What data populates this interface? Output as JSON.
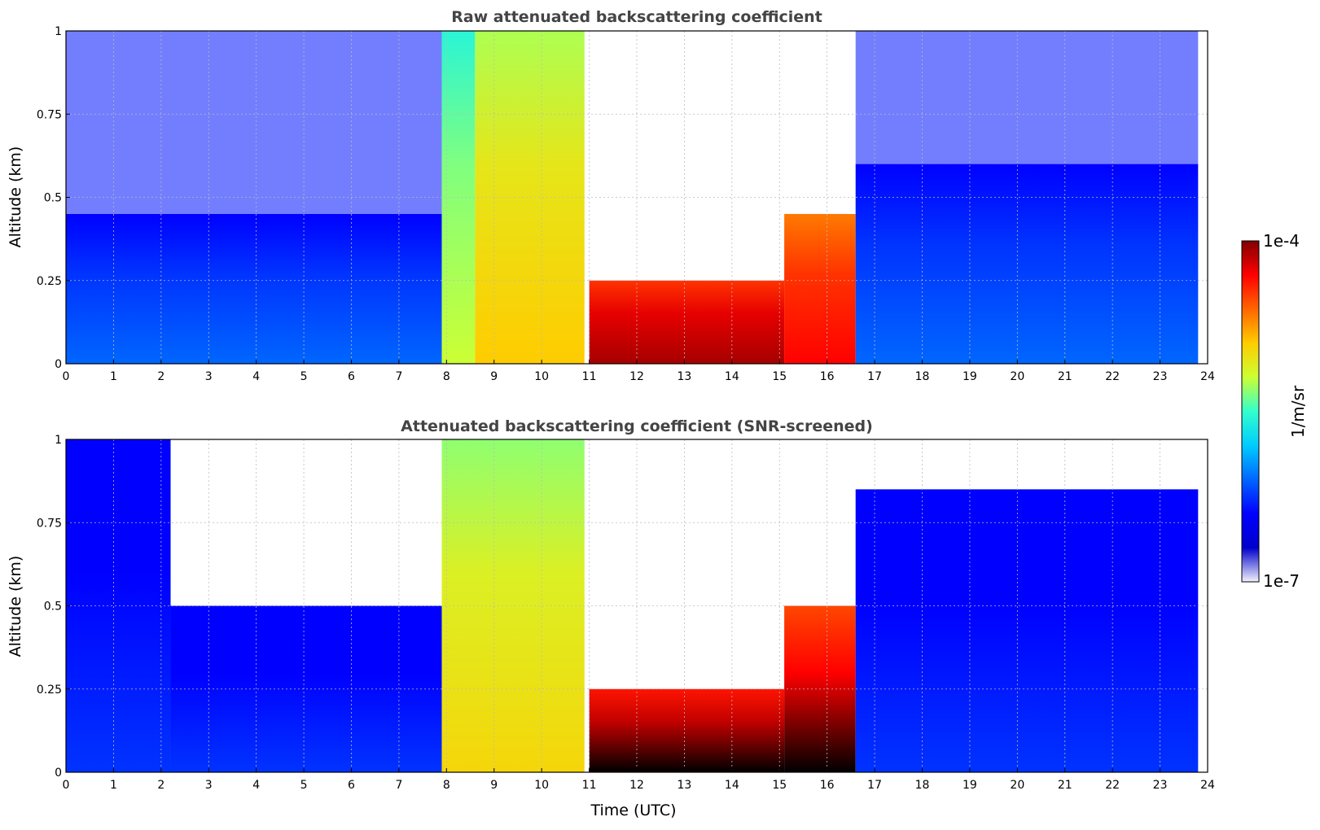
{
  "chart_data": [
    {
      "type": "heatmap",
      "title": "Raw attenuated backscattering coefficient",
      "ylabel": "Altitude (km)",
      "xlabel": "",
      "x_ticks": [
        "0",
        "1",
        "2",
        "3",
        "4",
        "5",
        "6",
        "7",
        "8",
        "9",
        "10",
        "11",
        "12",
        "13",
        "14",
        "15",
        "16",
        "17",
        "18",
        "19",
        "20",
        "21",
        "22",
        "23",
        "24"
      ],
      "y_ticks": [
        "0",
        "0.25",
        "0.5",
        "0.75",
        "1"
      ],
      "xlim": [
        0,
        24
      ],
      "ylim": [
        0,
        1
      ],
      "grid": true,
      "colorscale": "jet",
      "log_scale": true,
      "value_range": [
        "1e-7",
        "1e-4"
      ],
      "profile_columns": [
        {
          "x": [
            0,
            7.9
          ],
          "y_top": 0.45,
          "level": 0.3,
          "noise_above": true
        },
        {
          "x": [
            7.9,
            8.6
          ],
          "y_top": 1.0,
          "level": 0.6
        },
        {
          "x": [
            8.6,
            10.9
          ],
          "y_top": 1.0,
          "level": 0.7
        },
        {
          "x": [
            11.0,
            15.1
          ],
          "y_top": 0.25,
          "level": 0.97,
          "cloud_base": 0.0
        },
        {
          "x": [
            15.1,
            16.6
          ],
          "y_top": 0.45,
          "level": 0.9
        },
        {
          "x": [
            16.6,
            23.8
          ],
          "y_top": 0.6,
          "level": 0.3,
          "noise_above": true
        }
      ]
    },
    {
      "type": "heatmap",
      "title": "Attenuated backscattering coefficient (SNR-screened)",
      "ylabel": "Altitude (km)",
      "xlabel": "Time (UTC)",
      "x_ticks": [
        "0",
        "1",
        "2",
        "3",
        "4",
        "5",
        "6",
        "7",
        "8",
        "9",
        "10",
        "11",
        "12",
        "13",
        "14",
        "15",
        "16",
        "17",
        "18",
        "19",
        "20",
        "21",
        "22",
        "23",
        "24"
      ],
      "y_ticks": [
        "0",
        "0.25",
        "0.5",
        "0.75",
        "1"
      ],
      "xlim": [
        0,
        24
      ],
      "ylim": [
        0,
        1
      ],
      "grid": true,
      "colorscale": "jet",
      "log_scale": true,
      "value_range": [
        "1e-7",
        "1e-4"
      ],
      "profile_columns": [
        {
          "x": [
            0,
            2.2
          ],
          "y_top": 1.0,
          "level": 0.25
        },
        {
          "x": [
            2.2,
            7.9
          ],
          "y_top": 0.5,
          "level": 0.25
        },
        {
          "x": [
            7.9,
            10.9
          ],
          "y_top": 1.0,
          "level": 0.68
        },
        {
          "x": [
            11.0,
            15.1
          ],
          "y_top": 0.25,
          "level": 1.0,
          "saturated": true
        },
        {
          "x": [
            15.1,
            16.6
          ],
          "y_top": 0.5,
          "level": 0.95,
          "saturated": true
        },
        {
          "x": [
            16.6,
            23.8
          ],
          "y_top": 0.85,
          "level": 0.25
        }
      ]
    }
  ],
  "colorbar": {
    "label": "1/m/sr",
    "max_label": "1e-4",
    "min_label": "1e-7",
    "colors": [
      "#f2f2fb",
      "#0000cc",
      "#0000ff",
      "#0066ff",
      "#00ccff",
      "#33ffcc",
      "#ccff33",
      "#ffcc00",
      "#ff6600",
      "#ff0000",
      "#800000"
    ]
  }
}
